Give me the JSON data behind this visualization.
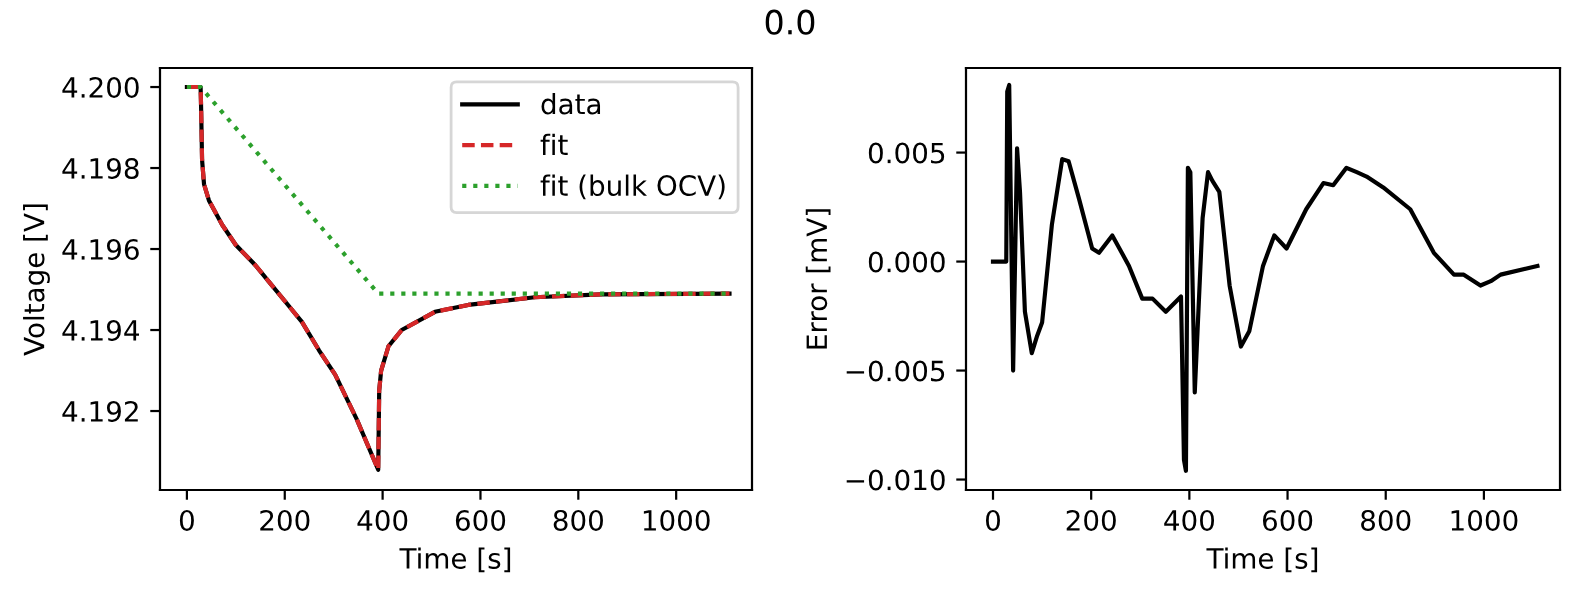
{
  "chart_data": [
    {
      "type": "line",
      "title": "0.0",
      "xlabel": "Time [s]",
      "ylabel": "Voltage [V]",
      "legend": "top right",
      "grid": false,
      "xlim": [
        -55,
        1155
      ],
      "xticks": [
        0,
        200,
        400,
        600,
        800,
        1000
      ],
      "ylim": [
        4.19005,
        4.20047
      ],
      "yticks": [
        {
          "value": 4.192,
          "label": "4.192"
        },
        {
          "value": 4.194,
          "label": "4.194"
        },
        {
          "value": 4.196,
          "label": "4.196"
        },
        {
          "value": 4.198,
          "label": "4.198"
        },
        {
          "value": 4.2,
          "label": "4.200"
        }
      ],
      "series": [
        {
          "name": "data",
          "color": "#000000",
          "line_style": "solid",
          "x": [
            0,
            28,
            29,
            31,
            35,
            45,
            72,
            100,
            140,
            167,
            208,
            235,
            270,
            303,
            347,
            391,
            393,
            397,
            412,
            439,
            507,
            575,
            711,
            846,
            1109
          ],
          "values": [
            4.2,
            4.2,
            4.1995,
            4.1982,
            4.1976,
            4.1972,
            4.1966,
            4.1961,
            4.1956,
            4.1952,
            4.1946,
            4.1942,
            4.1935,
            4.1929,
            4.1918,
            4.19055,
            4.1925,
            4.193,
            4.1936,
            4.194,
            4.19445,
            4.19462,
            4.19481,
            4.19488,
            4.1949
          ]
        },
        {
          "name": "fit",
          "color": "#d62728",
          "line_style": "dashed",
          "x": [
            0,
            28,
            29,
            31,
            35,
            45,
            72,
            100,
            140,
            167,
            208,
            235,
            270,
            303,
            347,
            391,
            393,
            397,
            412,
            439,
            507,
            575,
            711,
            846,
            1109
          ],
          "values": [
            4.2,
            4.2,
            4.1995,
            4.1982,
            4.1976,
            4.1972,
            4.1966,
            4.1961,
            4.1956,
            4.1952,
            4.1946,
            4.1942,
            4.1935,
            4.1929,
            4.1918,
            4.19055,
            4.1925,
            4.193,
            4.1936,
            4.194,
            4.19445,
            4.19462,
            4.19481,
            4.19488,
            4.1949
          ]
        },
        {
          "name": "fit (bulk OCV)",
          "color": "#2ca02c",
          "line_style": "dotted",
          "x": [
            0,
            28,
            391,
            1109
          ],
          "values": [
            4.2,
            4.2,
            4.1949,
            4.1949
          ]
        }
      ]
    },
    {
      "type": "line",
      "xlabel": "Time [s]",
      "ylabel": "Error [mV]",
      "legend": false,
      "grid": false,
      "xlim": [
        -55,
        1155
      ],
      "xticks": [
        0,
        200,
        400,
        600,
        800,
        1000
      ],
      "ylim": [
        -0.01048,
        0.00888
      ],
      "yticks": [
        {
          "value": -0.01,
          "label": "−0.010"
        },
        {
          "value": -0.005,
          "label": "−0.005"
        },
        {
          "value": 0,
          "label": "0.000"
        },
        {
          "value": 0.005,
          "label": "0.005"
        }
      ],
      "series": [
        {
          "color": "#000000",
          "line_style": "solid",
          "x": [
            0,
            27,
            29,
            33,
            41,
            49,
            55,
            65,
            79,
            90,
            100,
            120,
            141,
            154,
            175,
            202,
            216,
            243,
            277,
            304,
            325,
            352,
            383,
            389,
            393,
            397,
            402,
            411,
            427,
            438,
            447,
            461,
            482,
            505,
            522,
            550,
            573,
            598,
            638,
            673,
            693,
            720,
            741,
            761,
            795,
            850,
            898,
            939,
            959,
            993,
            1014,
            1034,
            1109
          ],
          "values": [
            0,
            0,
            0.0078,
            0.0081,
            -0.005,
            0.0052,
            0.0032,
            -0.0023,
            -0.0042,
            -0.0034,
            -0.0028,
            0.0017,
            0.0047,
            0.0046,
            0.0029,
            0.0006,
            0.0004,
            0.0012,
            -0.0002,
            -0.0017,
            -0.0017,
            -0.0023,
            -0.0016,
            -0.0091,
            -0.0096,
            0.0043,
            0.0041,
            -0.006,
            0.002,
            0.0041,
            0.0037,
            0.0032,
            -0.0011,
            -0.0039,
            -0.0032,
            -0.0002,
            0.0012,
            0.0006,
            0.0024,
            0.0036,
            0.0035,
            0.0043,
            0.0041,
            0.0039,
            0.0034,
            0.0024,
            0.0004,
            -0.0006,
            -0.0006,
            -0.0011,
            -0.0009,
            -0.0006,
            -0.0002
          ]
        }
      ]
    }
  ]
}
